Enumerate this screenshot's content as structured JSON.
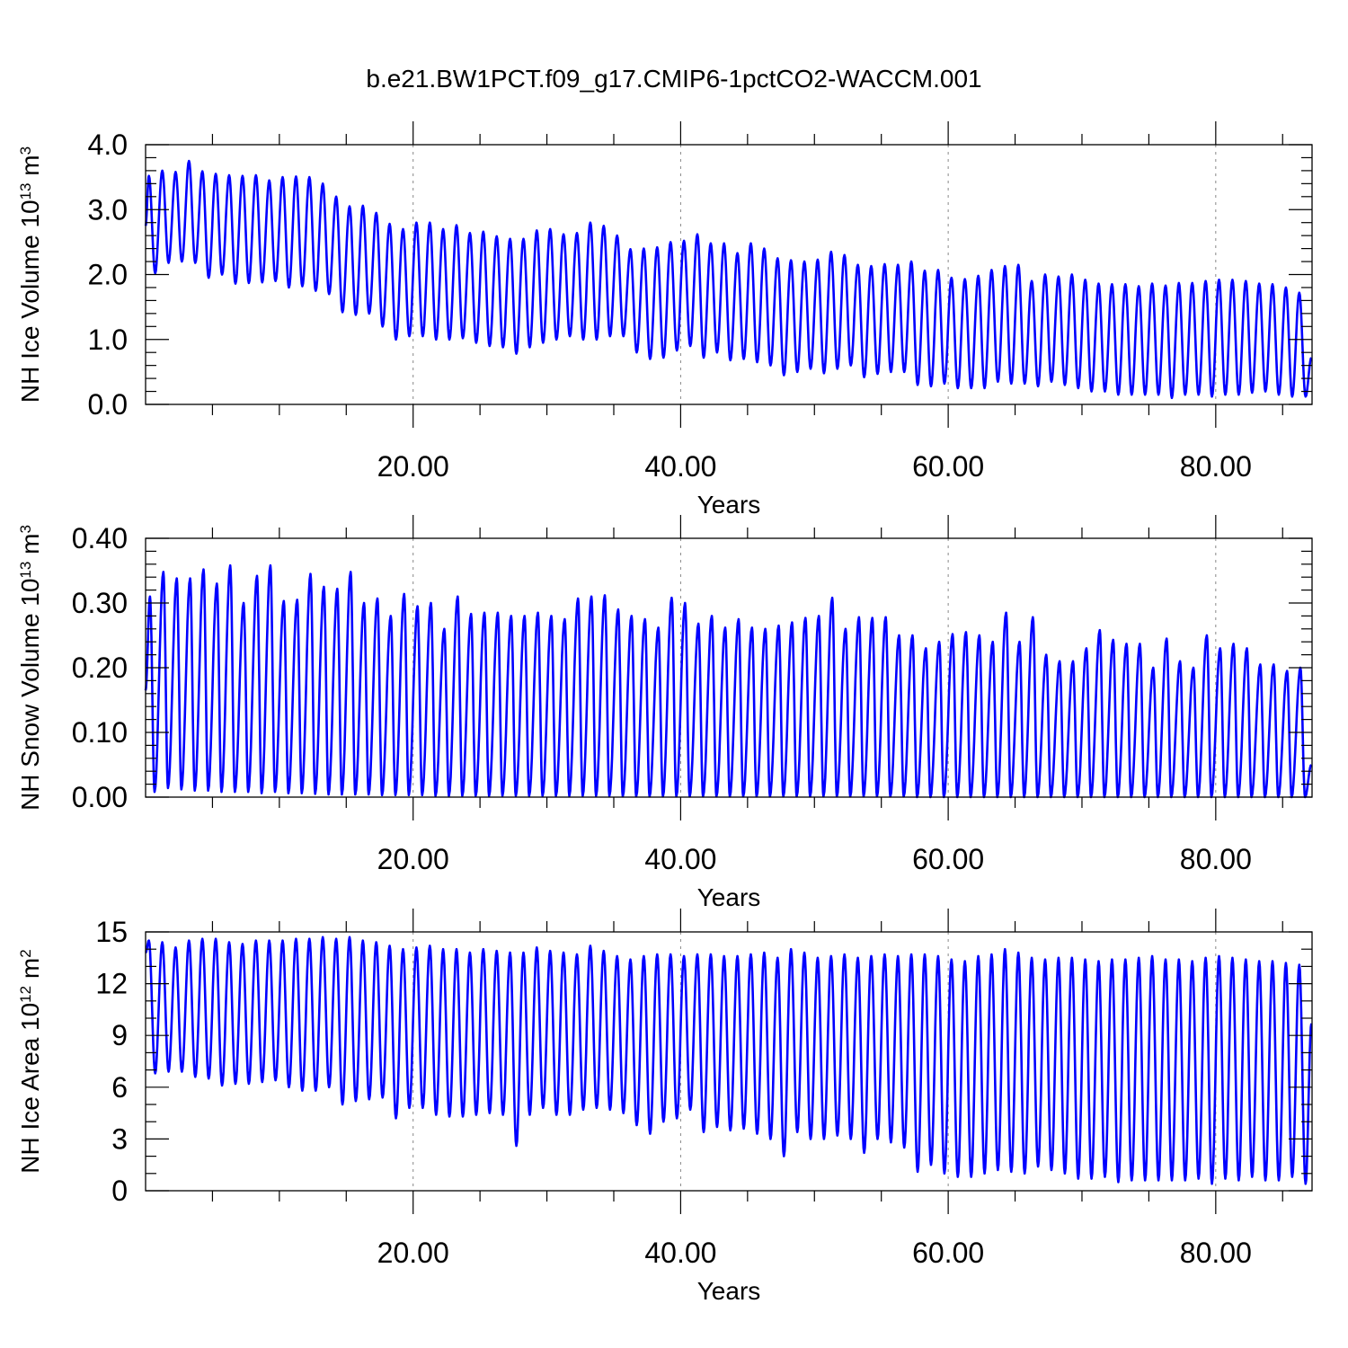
{
  "title": "b.e21.BW1PCT.f09_g17.CMIP6-1pctCO2-WACCM.001",
  "series_color": "#0000ff",
  "chart_data": [
    {
      "type": "line",
      "ylabel": "NH Ice Volume 10",
      "ylabel_exp": "13",
      "ylabel_unit": " m",
      "ylabel_unit_exp": "3",
      "xlabel": "Years",
      "xlim": [
        0.0,
        87.2
      ],
      "ylim": [
        0.0,
        4.0
      ],
      "x_ticks": [
        20,
        40,
        60,
        80
      ],
      "x_tick_labels": [
        "20.00",
        "40.00",
        "60.00",
        "80.00"
      ],
      "y_ticks": [
        0,
        1,
        2,
        3,
        4
      ],
      "y_tick_labels": [
        "0.0",
        "1.0",
        "2.0",
        "3.0",
        "4.0"
      ],
      "y_minor_step": 0.2,
      "grid_x": true,
      "annual_peak_month": 3,
      "annual_min_month": 9,
      "start_value": 2.75,
      "maxima": [
        3.52,
        3.6,
        3.58,
        3.75,
        3.59,
        3.55,
        3.53,
        3.52,
        3.53,
        3.45,
        3.5,
        3.51,
        3.5,
        3.4,
        3.2,
        3.05,
        3.06,
        2.95,
        2.78,
        2.7,
        2.8,
        2.8,
        2.7,
        2.76,
        2.64,
        2.66,
        2.59,
        2.55,
        2.55,
        2.68,
        2.7,
        2.62,
        2.64,
        2.8,
        2.75,
        2.6,
        2.39,
        2.4,
        2.42,
        2.5,
        2.52,
        2.62,
        2.48,
        2.48,
        2.33,
        2.48,
        2.4,
        2.25,
        2.22,
        2.2,
        2.23,
        2.35,
        2.3,
        2.15,
        2.13,
        2.16,
        2.15,
        2.2,
        2.06,
        2.07,
        1.95,
        1.93,
        1.98,
        2.07,
        2.13,
        2.15,
        1.9,
        2.0,
        1.97,
        2.0,
        1.92,
        1.86,
        1.85,
        1.85,
        1.82,
        1.86,
        1.83,
        1.87,
        1.87,
        1.9,
        1.92,
        1.92,
        1.9,
        1.86,
        1.85,
        1.8,
        1.72
      ],
      "minima": [
        2.02,
        2.18,
        2.2,
        2.18,
        1.95,
        2.0,
        1.86,
        1.87,
        1.88,
        1.9,
        1.8,
        1.82,
        1.75,
        1.7,
        1.42,
        1.38,
        1.4,
        1.2,
        1.0,
        1.05,
        1.05,
        1.0,
        1.0,
        1.02,
        0.95,
        0.9,
        0.88,
        0.78,
        0.88,
        0.95,
        1.0,
        1.05,
        1.0,
        1.0,
        1.05,
        1.05,
        0.8,
        0.7,
        0.72,
        0.83,
        0.9,
        0.72,
        0.8,
        0.68,
        0.7,
        0.65,
        0.6,
        0.45,
        0.5,
        0.55,
        0.48,
        0.55,
        0.6,
        0.42,
        0.47,
        0.5,
        0.5,
        0.3,
        0.28,
        0.32,
        0.25,
        0.25,
        0.25,
        0.35,
        0.32,
        0.32,
        0.28,
        0.35,
        0.3,
        0.25,
        0.2,
        0.2,
        0.15,
        0.15,
        0.15,
        0.15,
        0.1,
        0.15,
        0.15,
        0.12,
        0.15,
        0.15,
        0.18,
        0.2,
        0.15,
        0.12,
        0.12
      ],
      "end_value": 0.72
    },
    {
      "type": "line",
      "ylabel": "NH Snow Volume 10",
      "ylabel_exp": "13",
      "ylabel_unit": " m",
      "ylabel_unit_exp": "3",
      "xlabel": "Years",
      "xlim": [
        0.0,
        87.2
      ],
      "ylim": [
        0.0,
        0.4
      ],
      "x_ticks": [
        20,
        40,
        60,
        80
      ],
      "x_tick_labels": [
        "20.00",
        "40.00",
        "60.00",
        "80.00"
      ],
      "y_ticks": [
        0,
        0.1,
        0.2,
        0.3,
        0.4
      ],
      "y_tick_labels": [
        "0.00",
        "0.10",
        "0.20",
        "0.30",
        "0.40"
      ],
      "y_minor_step": 0.02,
      "grid_x": true,
      "annual_peak_month": 4,
      "annual_min_month": 8.5,
      "start_value": 0.165,
      "maxima": [
        0.31,
        0.348,
        0.338,
        0.338,
        0.352,
        0.33,
        0.358,
        0.3,
        0.342,
        0.358,
        0.303,
        0.305,
        0.345,
        0.325,
        0.322,
        0.348,
        0.3,
        0.307,
        0.28,
        0.314,
        0.295,
        0.3,
        0.26,
        0.31,
        0.283,
        0.285,
        0.285,
        0.28,
        0.28,
        0.285,
        0.28,
        0.275,
        0.307,
        0.31,
        0.312,
        0.29,
        0.28,
        0.275,
        0.262,
        0.308,
        0.3,
        0.268,
        0.28,
        0.262,
        0.275,
        0.262,
        0.26,
        0.265,
        0.27,
        0.277,
        0.28,
        0.308,
        0.26,
        0.278,
        0.277,
        0.278,
        0.25,
        0.25,
        0.23,
        0.24,
        0.252,
        0.255,
        0.25,
        0.24,
        0.285,
        0.24,
        0.278,
        0.22,
        0.21,
        0.21,
        0.23,
        0.258,
        0.243,
        0.237,
        0.237,
        0.2,
        0.245,
        0.21,
        0.2,
        0.25,
        0.23,
        0.237,
        0.23,
        0.205,
        0.205,
        0.195,
        0.2
      ],
      "minima": [
        0.008,
        0.014,
        0.012,
        0.01,
        0.01,
        0.008,
        0.008,
        0.008,
        0.006,
        0.008,
        0.006,
        0.006,
        0.005,
        0.004,
        0.004,
        0.004,
        0.004,
        0.003,
        0.003,
        0.003,
        0.003,
        0.002,
        0.002,
        0.002,
        0.002,
        0.002,
        0.002,
        0.002,
        0.002,
        0.002,
        0.002,
        0.002,
        0.002,
        0.002,
        0.002,
        0.001,
        0.001,
        0.001,
        0.001,
        0.001,
        0.001,
        0.001,
        0.001,
        0.001,
        0.001,
        0.001,
        0.001,
        0.001,
        0.001,
        0.001,
        0.001,
        0.001,
        0.001,
        0.001,
        0.001,
        0.001,
        0.001,
        0.0,
        0.0,
        0.0,
        0.0,
        0.0,
        0.0,
        0.0,
        0.0,
        0.0,
        0.0,
        0.0,
        0.0,
        0.0,
        0.0,
        0.0,
        0.0,
        0.0,
        0.0,
        0.0,
        0.0,
        0.0,
        0.0,
        0.0,
        0.0,
        0.0,
        0.0,
        0.0,
        0.0,
        0.0,
        0.0
      ],
      "end_value": 0.05
    },
    {
      "type": "line",
      "ylabel": "NH Ice Area 10",
      "ylabel_exp": "12",
      "ylabel_unit": " m",
      "ylabel_unit_exp": "2",
      "xlabel": "Years",
      "xlim": [
        0.0,
        87.2
      ],
      "ylim": [
        0,
        15
      ],
      "x_ticks": [
        20,
        40,
        60,
        80
      ],
      "x_tick_labels": [
        "20.00",
        "40.00",
        "60.00",
        "80.00"
      ],
      "y_ticks": [
        0,
        3,
        6,
        9,
        12,
        15
      ],
      "y_tick_labels": [
        "0",
        "3",
        "6",
        "9",
        "12",
        "15"
      ],
      "y_minor_step": 1,
      "grid_x": true,
      "annual_peak_month": 3,
      "annual_min_month": 9,
      "start_value": 13.8,
      "maxima": [
        14.5,
        14.4,
        14.1,
        14.5,
        14.6,
        14.6,
        14.4,
        14.3,
        14.5,
        14.5,
        14.5,
        14.6,
        14.6,
        14.7,
        14.6,
        14.7,
        14.5,
        14.4,
        14.2,
        14.0,
        14.1,
        14.2,
        14.0,
        14.0,
        13.8,
        14.0,
        13.9,
        13.8,
        13.8,
        14.1,
        13.9,
        13.8,
        13.7,
        14.2,
        13.9,
        13.6,
        13.4,
        13.6,
        13.7,
        13.7,
        13.6,
        13.7,
        13.7,
        13.6,
        13.6,
        13.7,
        13.8,
        13.5,
        14.0,
        13.8,
        13.5,
        13.6,
        13.7,
        13.5,
        13.6,
        13.7,
        13.6,
        13.7,
        13.7,
        13.6,
        13.4,
        13.3,
        13.6,
        13.7,
        14.0,
        13.8,
        13.5,
        13.4,
        13.5,
        13.5,
        13.4,
        13.3,
        13.4,
        13.4,
        13.5,
        13.6,
        13.4,
        13.4,
        13.3,
        13.5,
        13.6,
        13.5,
        13.4,
        13.3,
        13.3,
        13.2,
        13.1
      ],
      "minima": [
        6.8,
        6.9,
        6.9,
        6.6,
        6.5,
        6.1,
        6.2,
        6.2,
        6.3,
        6.4,
        6.0,
        5.8,
        5.8,
        6.0,
        5.0,
        5.2,
        5.3,
        5.4,
        4.2,
        4.8,
        4.8,
        4.4,
        4.3,
        4.3,
        4.4,
        4.5,
        4.4,
        2.6,
        4.4,
        4.8,
        4.4,
        4.4,
        4.7,
        4.8,
        4.7,
        4.5,
        3.8,
        3.3,
        4.0,
        4.2,
        4.7,
        3.4,
        3.7,
        3.5,
        3.6,
        3.3,
        3.0,
        2.0,
        3.4,
        3.0,
        3.0,
        3.2,
        3.0,
        2.2,
        3.0,
        2.8,
        2.5,
        1.1,
        1.5,
        1.0,
        0.8,
        0.8,
        1.0,
        1.2,
        1.1,
        1.0,
        1.4,
        1.2,
        1.0,
        0.7,
        0.7,
        0.8,
        0.5,
        0.6,
        0.6,
        0.6,
        0.6,
        0.6,
        0.7,
        0.4,
        0.7,
        0.6,
        0.8,
        0.6,
        0.6,
        0.8,
        0.4
      ],
      "end_value": 9.7
    }
  ]
}
